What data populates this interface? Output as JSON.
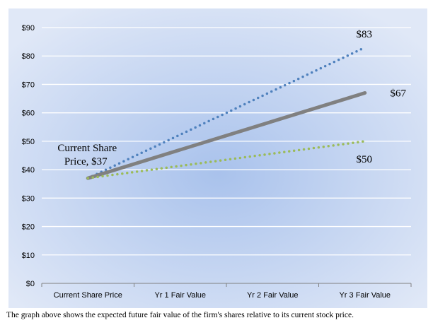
{
  "caption": "The graph above shows the expected future fair value of the firm's shares relative to its current stock price.",
  "chart_data": {
    "type": "line",
    "categories": [
      "Current Share Price",
      "Yr 1 Fair Value",
      "Yr 2 Fair Value",
      "Yr 3 Fair Value"
    ],
    "x": [
      0,
      3
    ],
    "series": [
      {
        "values": [
          37,
          83
        ],
        "color": "#4f81bd",
        "style": "dotted"
      },
      {
        "values": [
          37,
          67
        ],
        "color": "#808080",
        "style": "solid"
      },
      {
        "values": [
          37,
          50
        ],
        "color": "#9bbb59",
        "style": "dotted"
      }
    ],
    "annotations": [
      {
        "text": "$83",
        "x": 3,
        "y": 83
      },
      {
        "text": "$67",
        "x": 3,
        "y": 67
      },
      {
        "text": "$50",
        "x": 3,
        "y": 50
      },
      {
        "text": "Current Share",
        "x": 0,
        "y": 37
      },
      {
        "text": "Price, $37",
        "x": 0,
        "y": 37
      }
    ],
    "yticks": [
      "$0",
      "$10",
      "$20",
      "$30",
      "$40",
      "$50",
      "$60",
      "$70",
      "$80",
      "$90"
    ],
    "ylim": [
      0,
      90
    ],
    "grid": true,
    "colors": {
      "background_center": "#a9c2ec",
      "background_edge": "#e0e8f7",
      "gridline": "#ffffff"
    }
  }
}
